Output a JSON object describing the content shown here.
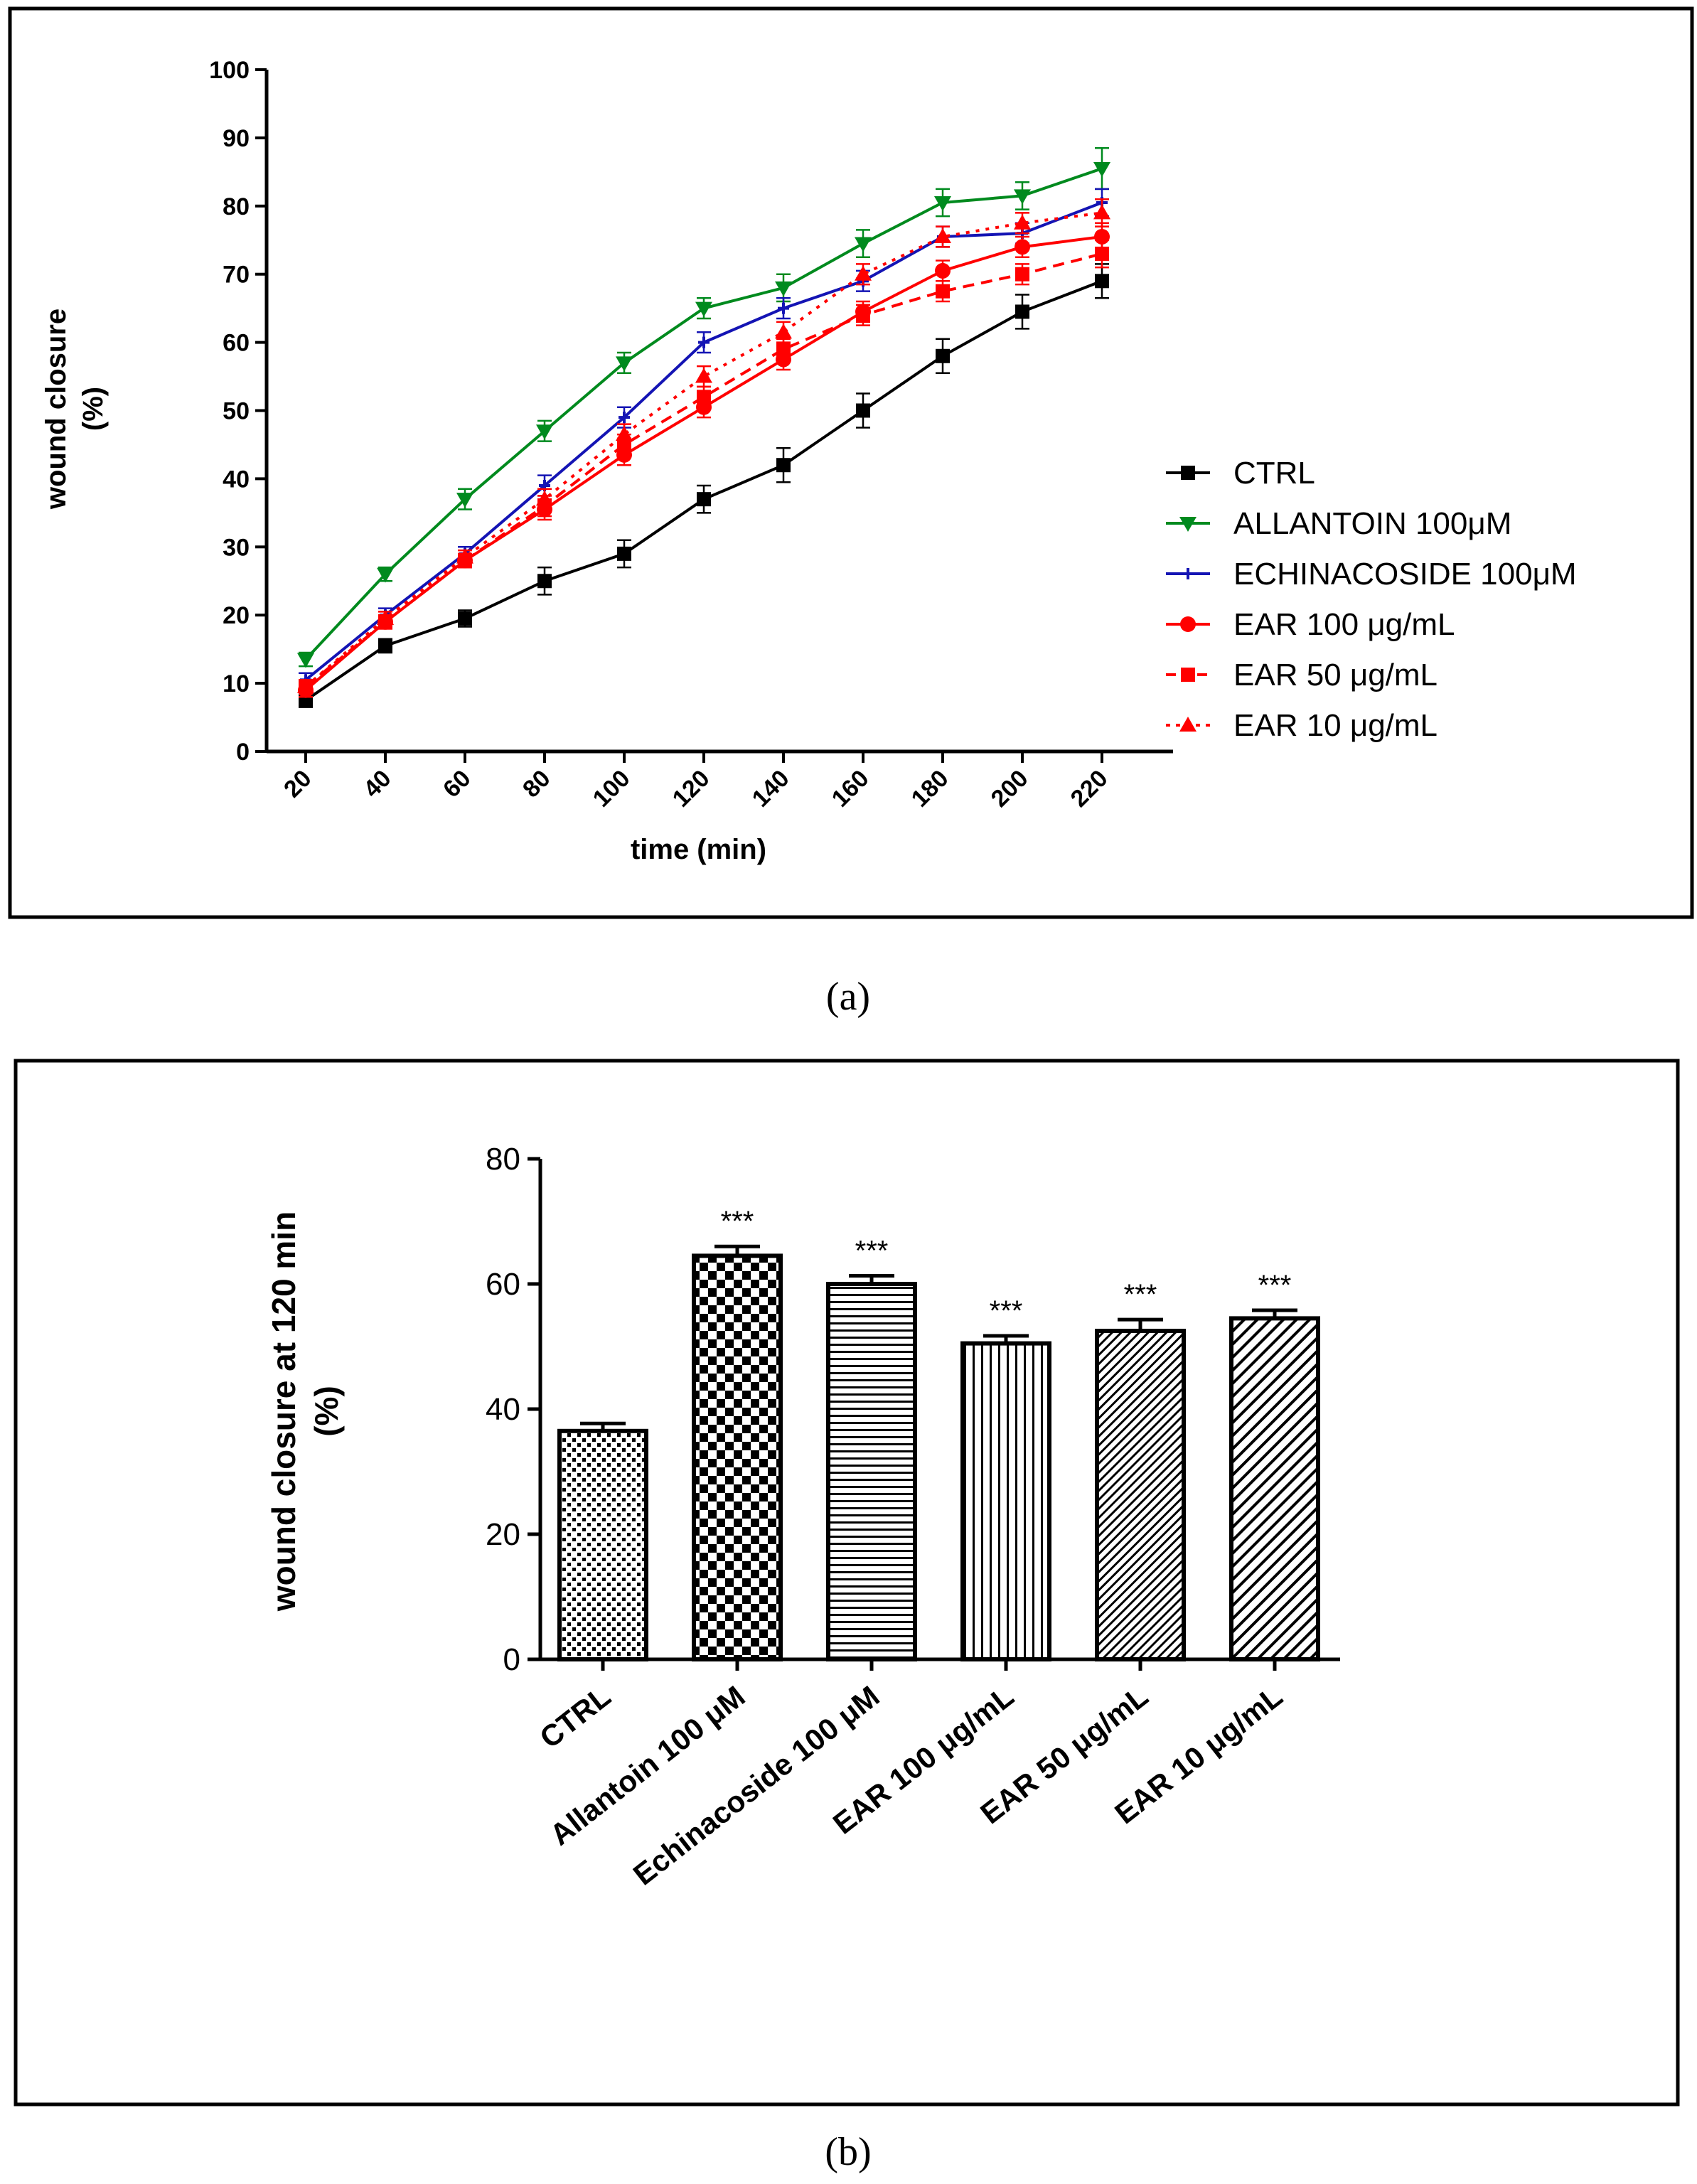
{
  "panel_a": {
    "label": "(a)",
    "chart_data": {
      "type": "line",
      "xlabel": "time (min)",
      "ylabel": [
        "wound closure",
        "(%)"
      ],
      "x": [
        20,
        40,
        60,
        80,
        100,
        120,
        140,
        160,
        180,
        200,
        220
      ],
      "xticks": [
        "20",
        "40",
        "60",
        "80",
        "100",
        "120",
        "140",
        "160",
        "180",
        "200",
        "220"
      ],
      "ylim": [
        0,
        100
      ],
      "yticks": [
        0,
        10,
        20,
        30,
        40,
        50,
        60,
        70,
        80,
        90,
        100
      ],
      "legend_position": "right",
      "series": [
        {
          "name": "CTRL",
          "color": "#000000",
          "dash": "solid",
          "marker": "square",
          "values": [
            7.5,
            15.5,
            19.5,
            25,
            29,
            37,
            42,
            50,
            58,
            64.5,
            69
          ],
          "errors": [
            1,
            1,
            1.2,
            2,
            2,
            2,
            2.5,
            2.5,
            2.5,
            2.5,
            2.5
          ]
        },
        {
          "name": "ALLANTOIN 100μM",
          "color": "#008a1e",
          "dash": "solid",
          "marker": "triangle-down",
          "values": [
            13.5,
            26,
            37,
            47,
            57,
            65,
            68,
            74.5,
            80.5,
            81.5,
            85.5
          ],
          "errors": [
            1,
            1,
            1.5,
            1.5,
            1.5,
            1.5,
            2,
            2,
            2,
            2,
            3
          ]
        },
        {
          "name": "ECHINACOSIDE 100μM",
          "color": "#1414b4",
          "dash": "solid",
          "marker": "plus",
          "values": [
            10.5,
            20,
            29,
            39,
            49,
            60,
            65,
            69,
            75.5,
            76,
            80.5
          ],
          "errors": [
            1,
            1,
            1,
            1.5,
            1.5,
            1.5,
            1.5,
            1.5,
            1.5,
            1.5,
            2
          ]
        },
        {
          "name": "EAR 100 μg/mL",
          "color": "#ff0000",
          "dash": "solid",
          "marker": "circle",
          "values": [
            9,
            19,
            28,
            35.5,
            43.5,
            50.5,
            57.5,
            64.5,
            70.5,
            74,
            75.5
          ],
          "errors": [
            1,
            1,
            1,
            1.5,
            1.5,
            1.5,
            1.5,
            1.5,
            1.5,
            1.5,
            2
          ]
        },
        {
          "name": "EAR 50 μg/mL",
          "color": "#ff0000",
          "dash": "dashed",
          "marker": "square",
          "values": [
            9.5,
            19,
            28,
            36,
            45,
            52,
            59,
            64,
            67.5,
            70,
            73
          ],
          "errors": [
            1,
            1,
            1,
            1.5,
            1.5,
            1.5,
            1.5,
            1.5,
            1.5,
            1.5,
            2
          ]
        },
        {
          "name": "EAR 10 μg/mL",
          "color": "#ff0000",
          "dash": "dotted",
          "marker": "triangle-up",
          "values": [
            9.5,
            19.5,
            28.5,
            37,
            46.5,
            55,
            61.5,
            70,
            75.5,
            77.5,
            79
          ],
          "errors": [
            1,
            1,
            1,
            1.5,
            1.5,
            1.5,
            1.5,
            1.5,
            1.5,
            1.5,
            2
          ]
        }
      ]
    }
  },
  "panel_b": {
    "label": "(b)",
    "chart_data": {
      "type": "bar",
      "ylabel": [
        "wound closure at 120 min",
        "(%)"
      ],
      "categories": [
        "CTRL",
        "Allantoin 100 μM",
        "Echinacoside 100 μM",
        "EAR 100 μg/mL",
        "EAR 50  μg/mL",
        "EAR 10  μg/mL"
      ],
      "values": [
        36.5,
        64.5,
        60,
        50.5,
        52.5,
        54.5
      ],
      "errors": [
        1.2,
        1.5,
        1.3,
        1.2,
        1.8,
        1.3
      ],
      "annotations": [
        "",
        "***",
        "***",
        "***",
        "***",
        "***"
      ],
      "patterns": [
        "dots",
        "checker",
        "horizontal",
        "vertical",
        "diagonal-fine",
        "diagonal"
      ],
      "ylim": [
        0,
        80
      ],
      "yticks": [
        0,
        20,
        40,
        60,
        80
      ]
    }
  }
}
